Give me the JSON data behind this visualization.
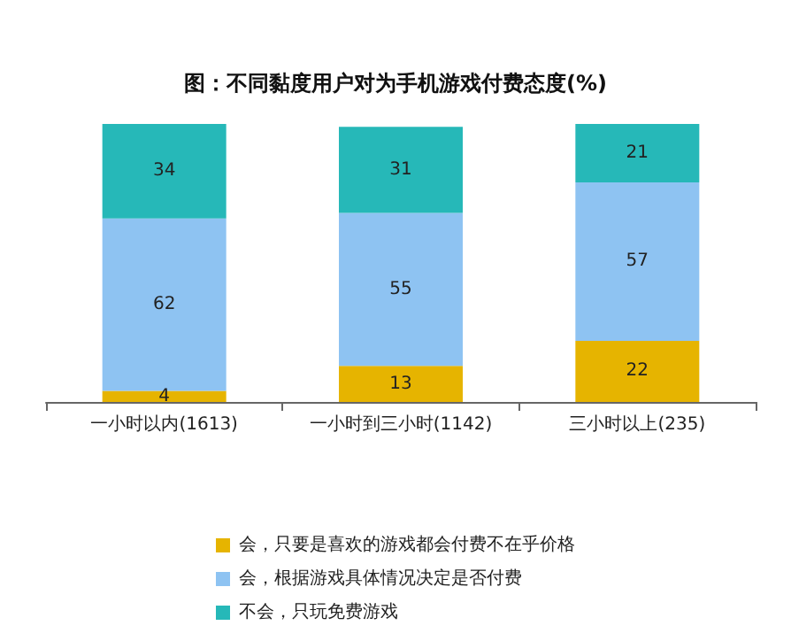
{
  "chart_data": {
    "type": "bar",
    "title": "图：不同黏度用户对为手机游戏付费态度(%)",
    "categories": [
      "一小时以内(1613)",
      "一小时到三小时(1142)",
      "三小时以上(235)"
    ],
    "stacked": true,
    "data_labels": true,
    "legend": "bottom",
    "grid": false,
    "series": [
      {
        "name": "会，只要是喜欢的游戏都会付费不在乎价格",
        "color": "#e6b400",
        "values": [
          4,
          13,
          22
        ]
      },
      {
        "name": "会，根据游戏具体情况决定是否付费",
        "color": "#8ec3f2",
        "values": [
          62,
          55,
          57
        ]
      },
      {
        "name": "不会，只玩免费游戏",
        "color": "#26b8b8",
        "values": [
          34,
          31,
          21
        ]
      }
    ]
  }
}
